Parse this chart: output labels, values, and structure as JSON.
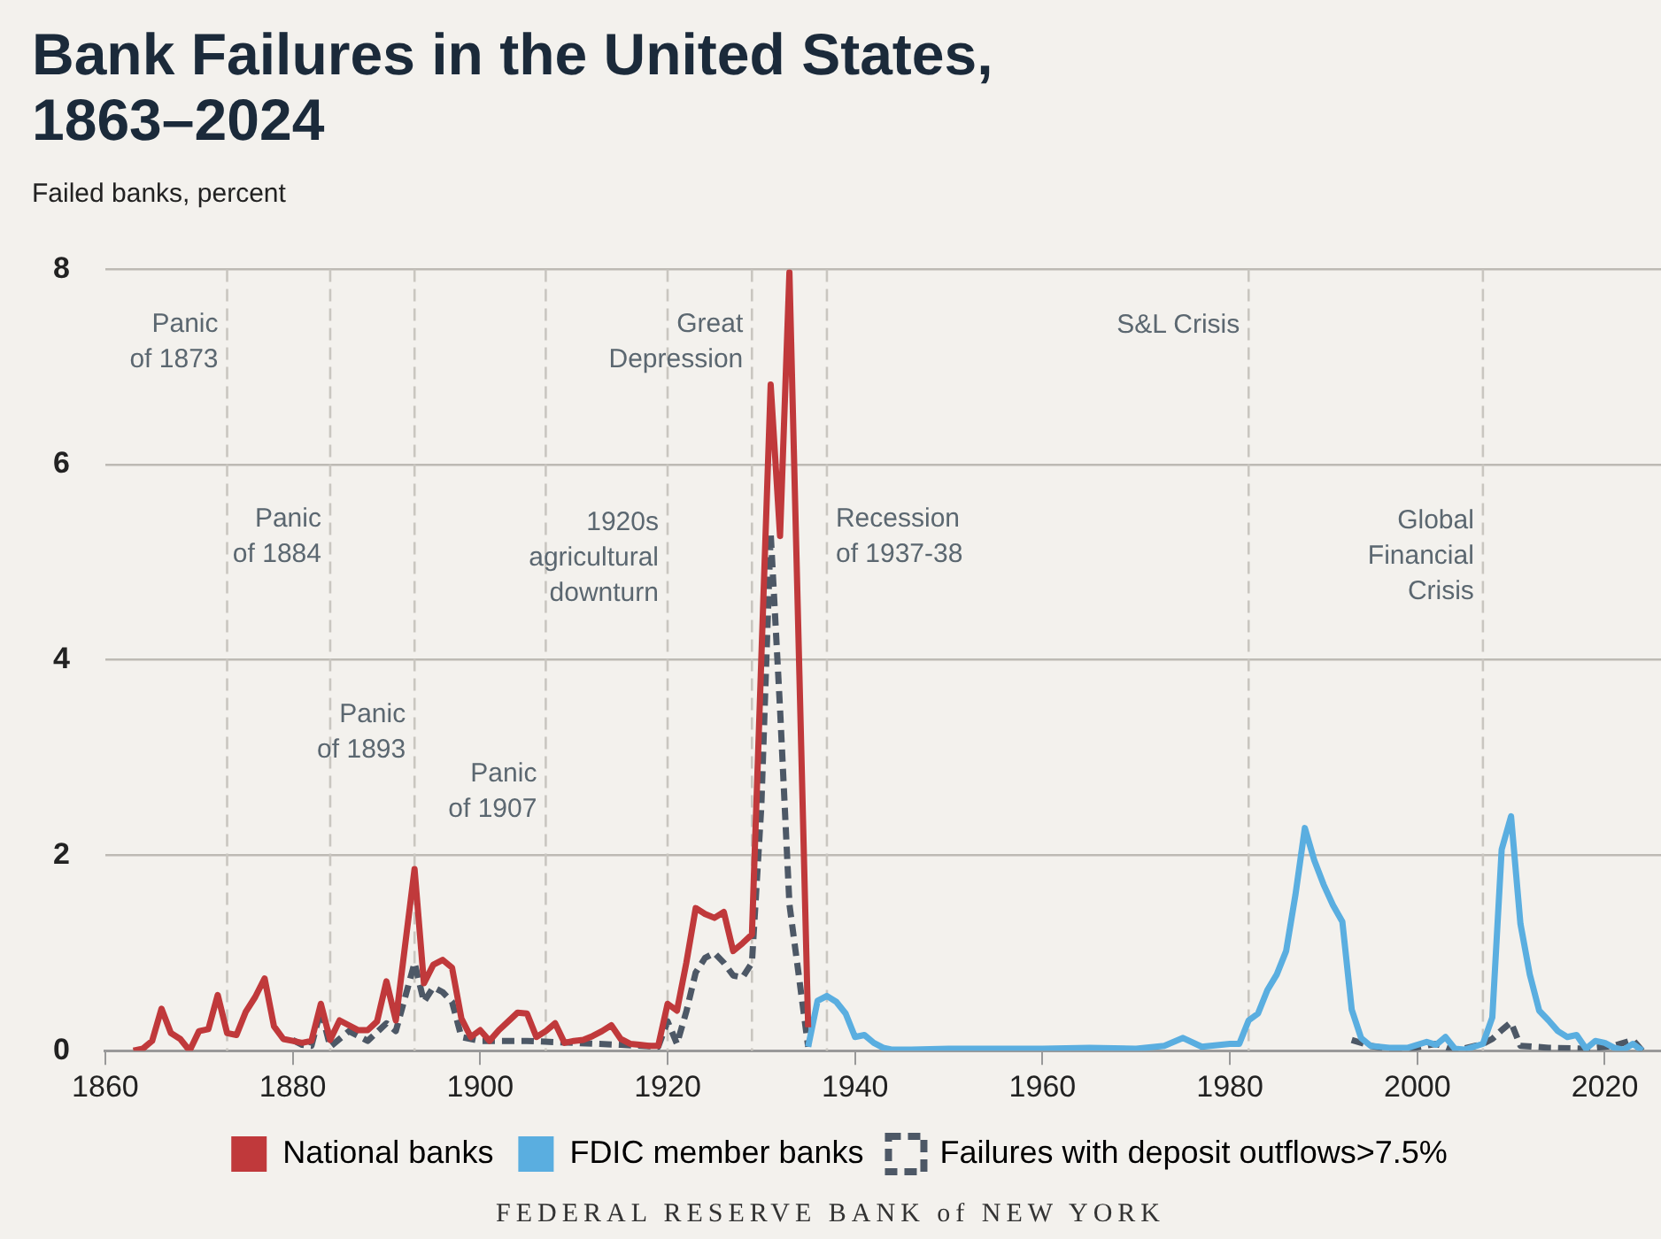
{
  "chart_data": {
    "type": "line",
    "title": "Bank Failures in the United States,\n1863–2024",
    "ylabel": "Failed banks, percent",
    "xlim": [
      1860,
      2026
    ],
    "xticks": [
      1860,
      1880,
      1900,
      1920,
      1940,
      1960,
      1980,
      2000,
      2020
    ],
    "ylim": [
      0,
      8
    ],
    "yticks": [
      0,
      2,
      4,
      6,
      8
    ],
    "grid": "y",
    "legend": "bottom",
    "marker": "none",
    "series": [
      {
        "name": "National banks",
        "color": "#c0393b",
        "line_style": "solid",
        "x": [
          1863,
          1864,
          1865,
          1866,
          1867,
          1868,
          1869,
          1870,
          1871,
          1872,
          1873,
          1874,
          1875,
          1876,
          1877,
          1878,
          1879,
          1880,
          1881,
          1882,
          1883,
          1884,
          1885,
          1886,
          1887,
          1888,
          1889,
          1890,
          1891,
          1893,
          1894,
          1895,
          1896,
          1897,
          1898,
          1899,
          1900,
          1901,
          1902,
          1903,
          1904,
          1905,
          1906,
          1907,
          1908,
          1909,
          1910,
          1911,
          1912,
          1913,
          1914,
          1915,
          1916,
          1917,
          1918,
          1919,
          1920,
          1921,
          1922,
          1923,
          1924,
          1925,
          1926,
          1927,
          1928,
          1929,
          1931,
          1932,
          1933,
          1935
        ],
        "values": [
          0,
          0.02,
          0.1,
          0.43,
          0.18,
          0.12,
          0,
          0.2,
          0.22,
          0.57,
          0.18,
          0.16,
          0.4,
          0.55,
          0.74,
          0.25,
          0.12,
          0.1,
          0.08,
          0.1,
          0.48,
          0.11,
          0.31,
          0.26,
          0.21,
          0.21,
          0.3,
          0.71,
          0.31,
          1.86,
          0.69,
          0.88,
          0.93,
          0.85,
          0.33,
          0.14,
          0.21,
          0.1,
          0.21,
          0.3,
          0.39,
          0.38,
          0.14,
          0.2,
          0.28,
          0.08,
          0.1,
          0.11,
          0.15,
          0.2,
          0.26,
          0.12,
          0.07,
          0.06,
          0.05,
          0.05,
          0.48,
          0.41,
          0.9,
          1.46,
          1.4,
          1.36,
          1.42,
          1.02,
          1.1,
          1.19,
          6.82,
          5.27,
          7.97,
          0.24
        ]
      },
      {
        "name": "FDIC member banks",
        "color": "#5aaee0",
        "line_style": "solid",
        "x": [
          1935,
          1936,
          1937,
          1938,
          1939,
          1940,
          1941,
          1942,
          1943,
          1944,
          1946,
          1950,
          1955,
          1960,
          1965,
          1970,
          1973,
          1975,
          1977,
          1980,
          1981,
          1982,
          1983,
          1984,
          1985,
          1986,
          1987,
          1988,
          1989,
          1990,
          1991,
          1992,
          1993,
          1994,
          1995,
          1997,
          1999,
          2001,
          2002,
          2003,
          2004,
          2005,
          2007,
          2008,
          2009,
          2010,
          2011,
          2012,
          2013,
          2014,
          2015,
          2016,
          2017,
          2018,
          2019,
          2020,
          2021,
          2022,
          2023,
          2024
        ],
        "values": [
          0.04,
          0.51,
          0.56,
          0.5,
          0.38,
          0.14,
          0.16,
          0.08,
          0.03,
          0.01,
          0.01,
          0.02,
          0.02,
          0.02,
          0.03,
          0.02,
          0.05,
          0.13,
          0.04,
          0.07,
          0.07,
          0.31,
          0.38,
          0.62,
          0.78,
          1.02,
          1.6,
          2.28,
          1.95,
          1.7,
          1.49,
          1.32,
          0.42,
          0.13,
          0.05,
          0.03,
          0.03,
          0.09,
          0.06,
          0.14,
          0.02,
          0.01,
          0.07,
          0.34,
          2.06,
          2.4,
          1.3,
          0.78,
          0.41,
          0.31,
          0.2,
          0.14,
          0.16,
          0.02,
          0.1,
          0.08,
          0.03,
          0.01,
          0.07,
          0
        ]
      },
      {
        "name": "Failures with deposit outflows>7.5%",
        "color": "#4d5866",
        "line_style": "dashed",
        "x": [
          1880,
          1881,
          1882,
          1883,
          1884,
          1886,
          1888,
          1890,
          1891,
          1893,
          1894,
          1895,
          1896,
          1897,
          1898,
          1900,
          1905,
          1910,
          1915,
          1919,
          1920,
          1921,
          1922,
          1923,
          1924,
          1925,
          1926,
          1927,
          1928,
          1929,
          1930,
          1931,
          1932,
          1933,
          1935,
          null,
          1993,
          1995,
          1998,
          2002,
          2004,
          2007,
          2008,
          2009,
          2010,
          2011,
          2014,
          2018,
          2021,
          2023,
          2024
        ],
        "values": [
          0.11,
          0.06,
          0.05,
          0.42,
          0.04,
          0.2,
          0.1,
          0.28,
          0.2,
          0.9,
          0.5,
          0.65,
          0.6,
          0.5,
          0.14,
          0.1,
          0.1,
          0.08,
          0.06,
          0.04,
          0.3,
          0.07,
          0.4,
          0.8,
          0.95,
          1.0,
          0.9,
          0.77,
          0.75,
          0.9,
          2.5,
          5.3,
          3.5,
          1.5,
          0.04,
          null,
          0.11,
          0.05,
          0,
          0.07,
          0,
          0.07,
          0.12,
          0.21,
          0.29,
          0.05,
          0.03,
          0.02,
          0.05,
          0.11,
          0
        ]
      }
    ],
    "ref_lines": [
      {
        "axis": "x",
        "value": 1873,
        "color": "#c9c6c0",
        "line_style": "dashed"
      },
      {
        "axis": "x",
        "value": 1884,
        "color": "#c9c6c0",
        "line_style": "dashed"
      },
      {
        "axis": "x",
        "value": 1893,
        "color": "#c9c6c0",
        "line_style": "dashed"
      },
      {
        "axis": "x",
        "value": 1907,
        "color": "#c9c6c0",
        "line_style": "dashed"
      },
      {
        "axis": "x",
        "value": 1920,
        "color": "#c9c6c0",
        "line_style": "dashed"
      },
      {
        "axis": "x",
        "value": 1929,
        "color": "#c9c6c0",
        "line_style": "dashed"
      },
      {
        "axis": "x",
        "value": 1937,
        "color": "#c9c6c0",
        "line_style": "dashed"
      },
      {
        "axis": "x",
        "value": 1982,
        "color": "#c9c6c0",
        "line_style": "dashed"
      },
      {
        "axis": "x",
        "value": 2007,
        "color": "#c9c6c0",
        "line_style": "dashed"
      }
    ],
    "annotations": [
      {
        "text": "Panic\nof 1873",
        "x": 1873,
        "y": 7.25
      },
      {
        "text": "Panic\nof 1884",
        "x": 1884,
        "y": 5.26
      },
      {
        "text": "Panic\nof 1893",
        "x": 1893,
        "y": 3.26
      },
      {
        "text": "Panic\nof 1907",
        "x": 1907,
        "y": 2.65
      },
      {
        "text": "1920s\nagricultural\ndownturn",
        "x": 1920,
        "y": 5.04
      },
      {
        "text": "Great\nDepression",
        "x": 1929,
        "y": 7.25
      },
      {
        "text": "Recession\nof 1937-38",
        "x": 1937,
        "y": 5.26
      },
      {
        "text": "S&L Crisis",
        "x": 1982,
        "y": 7.43
      },
      {
        "text": "Global\nFinancial\nCrisis",
        "x": 2007,
        "y": 5.06
      },
      "FEDERAL RESERVE BANK of NEW YORK"
    ]
  }
}
